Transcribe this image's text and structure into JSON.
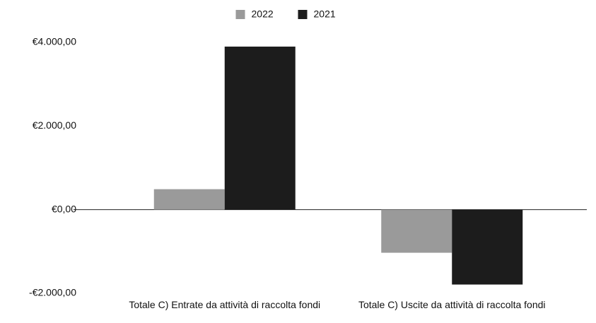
{
  "chart_data": {
    "type": "bar",
    "categories": [
      "Totale C) Entrate da attività di raccolta fondi",
      "Totale C) Uscite da attività di raccolta fondi"
    ],
    "series": [
      {
        "name": "2022",
        "color": "#9a9a9a",
        "values": [
          490,
          -1030
        ]
      },
      {
        "name": "2021",
        "color": "#1c1c1c",
        "values": [
          3900,
          -1790
        ]
      }
    ],
    "ylim": [
      -2000,
      4000
    ],
    "yticks": [
      {
        "value": -2000,
        "label": "-€2.000,00"
      },
      {
        "value": 0,
        "label": "€0,00"
      },
      {
        "value": 2000,
        "label": "€2.000,00"
      },
      {
        "value": 4000,
        "label": "€4.000,00"
      }
    ],
    "grid": false,
    "legend": "top"
  }
}
